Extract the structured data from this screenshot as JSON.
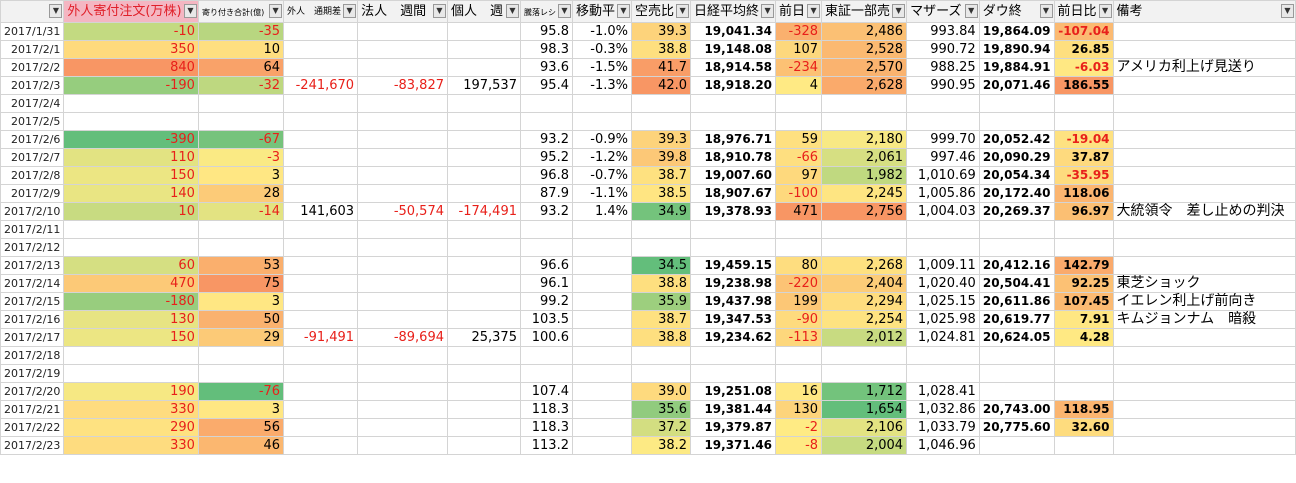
{
  "header": [
    "外人寄付注文(万株)",
    "寄り付き合計(億)",
    "外人　通期差",
    "法人　週間",
    "個人　週",
    "騰落レシ",
    "移動平",
    "空売比",
    "日経平均終",
    "前日",
    "東証一部売",
    "マザーズ",
    "ダウ終",
    "前日比",
    "備考"
  ],
  "rows": [
    {
      "date": "2017/1/31",
      "cells": [
        "-10",
        "-35",
        null,
        null,
        null,
        "95.8",
        "-1.0%",
        "39.3",
        "19,041.34",
        "-328",
        "2,486",
        "993.84",
        "19,864.09",
        "-107.04",
        null
      ]
    },
    {
      "date": "2017/2/1",
      "cells": [
        "350",
        "10",
        null,
        null,
        null,
        "98.3",
        "-0.3%",
        "38.8",
        "19,148.08",
        "107",
        "2,528",
        "990.72",
        "19,890.94",
        "26.85",
        null
      ]
    },
    {
      "date": "2017/2/2",
      "cells": [
        "840",
        "64",
        null,
        null,
        null,
        "93.6",
        "-1.5%",
        "41.7",
        "18,914.58",
        "-234",
        "2,570",
        "988.25",
        "19,884.91",
        "-6.03",
        "アメリカ利上げ見送り"
      ]
    },
    {
      "date": "2017/2/3",
      "cells": [
        "-190",
        "-32",
        "-241,670",
        "-83,827",
        "197,537",
        "95.4",
        "-1.3%",
        "42.0",
        "18,918.20",
        "4",
        "2,628",
        "990.95",
        "20,071.46",
        "186.55",
        null
      ]
    },
    {
      "date": "2017/2/4",
      "cells": [
        null,
        null,
        null,
        null,
        null,
        null,
        null,
        null,
        null,
        null,
        null,
        null,
        null,
        null,
        null
      ]
    },
    {
      "date": "2017/2/5",
      "cells": [
        null,
        null,
        null,
        null,
        null,
        null,
        null,
        null,
        null,
        null,
        null,
        null,
        null,
        null,
        null
      ]
    },
    {
      "date": "2017/2/6",
      "cells": [
        "-390",
        "-67",
        null,
        null,
        null,
        "93.2",
        "-0.9%",
        "39.3",
        "18,976.71",
        "59",
        "2,180",
        "999.70",
        "20,052.42",
        "-19.04",
        null
      ]
    },
    {
      "date": "2017/2/7",
      "cells": [
        "110",
        "-3",
        null,
        null,
        null,
        "95.2",
        "-1.2%",
        "39.8",
        "18,910.78",
        "-66",
        "2,061",
        "997.46",
        "20,090.29",
        "37.87",
        null
      ]
    },
    {
      "date": "2017/2/8",
      "cells": [
        "150",
        "3",
        null,
        null,
        null,
        "96.8",
        "-0.7%",
        "38.7",
        "19,007.60",
        "97",
        "1,982",
        "1,010.69",
        "20,054.34",
        "-35.95",
        null
      ]
    },
    {
      "date": "2017/2/9",
      "cells": [
        "140",
        "28",
        null,
        null,
        null,
        "87.9",
        "-1.1%",
        "38.5",
        "18,907.67",
        "-100",
        "2,245",
        "1,005.86",
        "20,172.40",
        "118.06",
        null
      ]
    },
    {
      "date": "2017/2/10",
      "cells": [
        "10",
        "-14",
        "141,603",
        "-50,574",
        "-174,491",
        "93.2",
        "1.4%",
        "34.9",
        "19,378.93",
        "471",
        "2,756",
        "1,004.03",
        "20,269.37",
        "96.97",
        "大統領令　差し止めの判決"
      ]
    },
    {
      "date": "2017/2/11",
      "cells": [
        null,
        null,
        null,
        null,
        null,
        null,
        null,
        null,
        null,
        null,
        null,
        null,
        null,
        null,
        null
      ]
    },
    {
      "date": "2017/2/12",
      "cells": [
        null,
        null,
        null,
        null,
        null,
        null,
        null,
        null,
        null,
        null,
        null,
        null,
        null,
        null,
        null
      ]
    },
    {
      "date": "2017/2/13",
      "cells": [
        "60",
        "53",
        null,
        null,
        null,
        "96.6",
        null,
        "34.5",
        "19,459.15",
        "80",
        "2,268",
        "1,009.11",
        "20,412.16",
        "142.79",
        null
      ]
    },
    {
      "date": "2017/2/14",
      "cells": [
        "470",
        "75",
        null,
        null,
        null,
        "96.1",
        null,
        "38.8",
        "19,238.98",
        "-220",
        "2,404",
        "1,020.40",
        "20,504.41",
        "92.25",
        "東芝ショック"
      ]
    },
    {
      "date": "2017/2/15",
      "cells": [
        "-180",
        "3",
        null,
        null,
        null,
        "99.2",
        null,
        "35.9",
        "19,437.98",
        "199",
        "2,294",
        "1,025.15",
        "20,611.86",
        "107.45",
        "イエレン利上げ前向き"
      ]
    },
    {
      "date": "2017/2/16",
      "cells": [
        "130",
        "50",
        null,
        null,
        null,
        "103.5",
        null,
        "38.7",
        "19,347.53",
        "-90",
        "2,254",
        "1,025.98",
        "20,619.77",
        "7.91",
        "キムジョンナム　暗殺"
      ]
    },
    {
      "date": "2017/2/17",
      "cells": [
        "150",
        "29",
        "-91,491",
        "-89,694",
        "25,375",
        "100.6",
        null,
        "38.8",
        "19,234.62",
        "-113",
        "2,012",
        "1,024.81",
        "20,624.05",
        "4.28",
        null
      ]
    },
    {
      "date": "2017/2/18",
      "cells": [
        null,
        null,
        null,
        null,
        null,
        null,
        null,
        null,
        null,
        null,
        null,
        null,
        null,
        null,
        null
      ]
    },
    {
      "date": "2017/2/19",
      "cells": [
        null,
        null,
        null,
        null,
        null,
        null,
        null,
        null,
        null,
        null,
        null,
        null,
        null,
        null,
        null
      ]
    },
    {
      "date": "2017/2/20",
      "cells": [
        "190",
        "-76",
        null,
        null,
        null,
        "107.4",
        null,
        "39.0",
        "19,251.08",
        "16",
        "1,712",
        "1,028.41",
        null,
        null,
        null
      ]
    },
    {
      "date": "2017/2/21",
      "cells": [
        "330",
        "3",
        null,
        null,
        null,
        "118.3",
        null,
        "35.6",
        "19,381.44",
        "130",
        "1,654",
        "1,032.86",
        "20,743.00",
        "118.95",
        null
      ]
    },
    {
      "date": "2017/2/22",
      "cells": [
        "290",
        "56",
        null,
        null,
        null,
        "118.3",
        null,
        "37.2",
        "19,379.87",
        "-2",
        "2,106",
        "1,033.79",
        "20,775.60",
        "32.60",
        null
      ]
    },
    {
      "date": "2017/2/23",
      "cells": [
        "330",
        "46",
        null,
        null,
        null,
        "113.2",
        null,
        "38.2",
        "19,371.46",
        "-8",
        "2,004",
        "1,046.96",
        null,
        null,
        null
      ]
    }
  ]
}
